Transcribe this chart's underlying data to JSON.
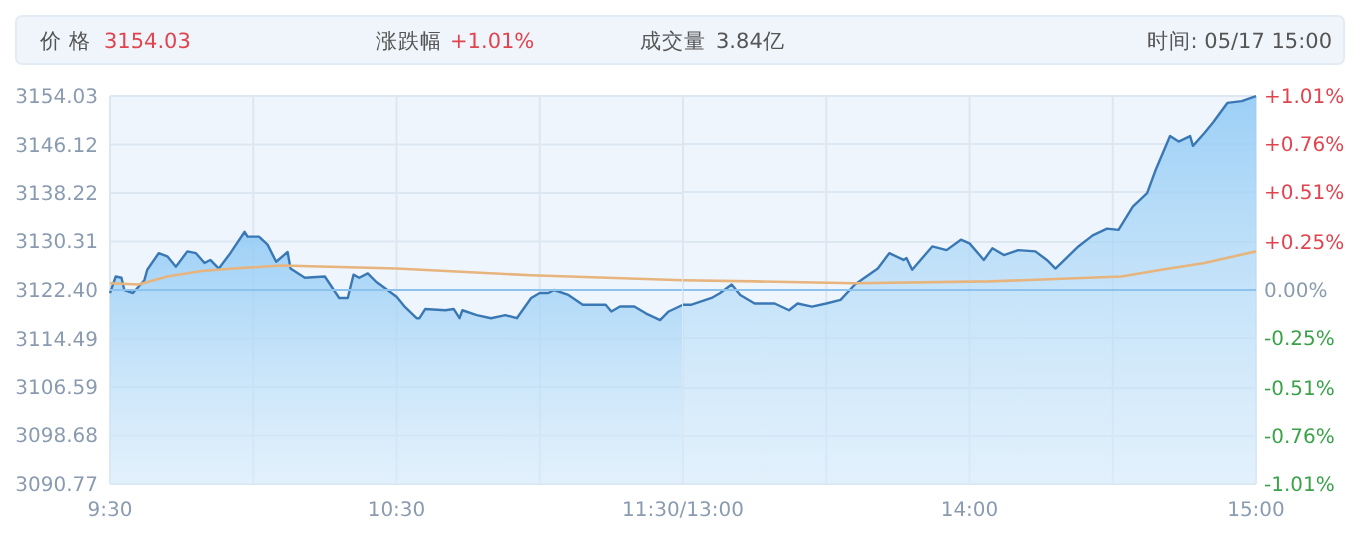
{
  "chart_data": [
    {
      "type": "area",
      "annotations": [
        "价 格",
        "3154.03",
        "涨跌幅",
        "+1.01%",
        "成交量",
        "3.84亿",
        "时间: 05/17 15:00"
      ],
      "xlim": [
        9.5,
        11.5
      ],
      "xticks": [
        {
          "value": 9.5,
          "label": "9:30"
        },
        {
          "value": 10,
          "label": null
        },
        {
          "value": 10.5,
          "label": "10:30"
        },
        {
          "value": 11,
          "label": null
        },
        {
          "value": 11.5,
          "label": "11:30/13:00"
        }
      ],
      "ylim": [
        3090.77,
        3154.03
      ],
      "yticks": [
        {
          "value": 3090.77,
          "label": "3090.77"
        },
        {
          "value": 3098.68,
          "label": "3098.68"
        },
        {
          "value": 3106.59,
          "label": "3106.59"
        },
        {
          "value": 3114.49,
          "label": "3114.49"
        },
        {
          "value": 3122.4,
          "label": "3122.40"
        },
        {
          "value": 3130.31,
          "label": "3130.31"
        },
        {
          "value": 3138.22,
          "label": "3138.22"
        },
        {
          "value": 3146.12,
          "label": "3146.12"
        },
        {
          "value": 3154.03,
          "label": "3154.03"
        }
      ],
      "grid": true,
      "ref_lines": [
        {
          "axis": "y",
          "value": 3122.4,
          "color": "#8cc2ec"
        }
      ],
      "series": [
        {
          "color": "#3a78b5",
          "x": [
            9.5,
            9.52,
            9.54,
            9.55,
            9.58,
            9.62,
            9.63,
            9.67,
            9.7,
            9.73,
            9.77,
            9.8,
            9.83,
            9.85,
            9.88,
            9.92,
            9.97,
            9.98,
            10.02,
            10.05,
            10.08,
            10.12,
            10.13,
            10.18,
            10.25,
            10.3,
            10.33,
            10.35,
            10.37,
            10.4,
            10.43,
            10.5,
            10.53,
            10.57,
            10.58,
            10.6,
            10.67,
            10.7,
            10.72,
            10.73,
            10.78,
            10.83,
            10.88,
            10.92,
            10.97,
            11,
            11.03,
            11.05,
            11.1,
            11.15,
            11.18,
            11.23,
            11.25,
            11.28,
            11.33,
            11.37,
            11.42,
            11.45,
            11.5
          ],
          "values": [
            3121.9,
            3124.6,
            3124.4,
            3122.4,
            3121.9,
            3124.0,
            3125.7,
            3128.4,
            3127.9,
            3126.2,
            3128.7,
            3128.4,
            3126.8,
            3127.3,
            3125.9,
            3128.4,
            3131.9,
            3131.1,
            3131.1,
            3129.8,
            3127.0,
            3128.6,
            3125.9,
            3124.4,
            3124.6,
            3121.1,
            3121.1,
            3124.9,
            3124.4,
            3125.1,
            3123.7,
            3121.3,
            3119.6,
            3117.8,
            3117.8,
            3119.3,
            3119.1,
            3119.3,
            3117.8,
            3119.1,
            3118.3,
            3117.8,
            3118.3,
            3117.8,
            3121.1,
            3121.9,
            3121.9,
            3122.4,
            3121.6,
            3120.0,
            3120.0,
            3120.0,
            3118.9,
            3119.7,
            3119.7,
            3118.6,
            3117.5,
            3118.9,
            3120.0
          ]
        },
        {
          "type": "line",
          "color": "#e6b47c",
          "x": [
            9.5,
            9.6,
            9.7,
            9.82,
            9.93,
            10.1,
            10.5,
            10.97,
            11.5
          ],
          "values": [
            3123.5,
            3123.3,
            3124.6,
            3125.5,
            3125.9,
            3126.4,
            3125.9,
            3124.8,
            3124.0
          ]
        }
      ]
    },
    {
      "type": "area",
      "xlim": [
        13,
        15
      ],
      "xticks": [
        {
          "value": 13,
          "label": null
        },
        {
          "value": 13.5,
          "label": null
        },
        {
          "value": 14,
          "label": "14:00"
        },
        {
          "value": 14.5,
          "label": null
        },
        {
          "value": 15,
          "label": "15:00"
        }
      ],
      "ylim": [
        3090.77,
        3154.03
      ],
      "tick_labels": "x",
      "y2lim": [
        -1.01,
        1.01
      ],
      "y2ticks": [
        {
          "value": -1.01,
          "label": "-1.01%"
        },
        {
          "value": -0.76,
          "label": "-0.76%"
        },
        {
          "value": -0.51,
          "label": "-0.51%"
        },
        {
          "value": -0.25,
          "label": "-0.25%"
        },
        {
          "value": 0,
          "label": "0.00%"
        },
        {
          "value": 0.25,
          "label": "+0.25%"
        },
        {
          "value": 0.51,
          "label": "+0.51%"
        },
        {
          "value": 0.76,
          "label": "+0.76%"
        },
        {
          "value": 1.01,
          "label": "+1.01%"
        }
      ],
      "grid": true,
      "ref_lines": [
        {
          "axis": "y",
          "value": 3122.4,
          "color": "#8cc2ec"
        }
      ],
      "series": [
        {
          "color": "#3a78b5",
          "x": [
            13,
            13.03,
            13.1,
            13.13,
            13.17,
            13.2,
            13.25,
            13.32,
            13.37,
            13.4,
            13.45,
            13.5,
            13.55,
            13.6,
            13.68,
            13.72,
            13.77,
            13.78,
            13.8,
            13.87,
            13.92,
            13.97,
            14,
            14.05,
            14.08,
            14.12,
            14.17,
            14.23,
            14.27,
            14.3,
            14.32,
            14.38,
            14.43,
            14.48,
            14.52,
            14.57,
            14.62,
            14.65,
            14.7,
            14.73,
            14.77,
            14.78,
            14.82,
            14.85,
            14.9,
            14.95,
            15
          ],
          "values": [
            3120.0,
            3120.0,
            3121.1,
            3121.9,
            3123.3,
            3121.6,
            3120.2,
            3120.2,
            3119.1,
            3120.2,
            3119.7,
            3120.2,
            3120.8,
            3123.3,
            3125.9,
            3128.4,
            3127.3,
            3127.6,
            3125.7,
            3129.5,
            3128.9,
            3130.6,
            3130.0,
            3127.3,
            3129.2,
            3128.1,
            3128.9,
            3128.7,
            3127.3,
            3125.9,
            3126.8,
            3129.5,
            3131.3,
            3132.4,
            3132.2,
            3136.0,
            3138.2,
            3142.0,
            3147.5,
            3146.6,
            3147.5,
            3145.9,
            3148.0,
            3149.7,
            3152.9,
            3153.2,
            3154.0
          ]
        },
        {
          "type": "line",
          "color": "#e6b47c",
          "x": [
            13,
            13.25,
            13.6,
            14.07,
            14.53,
            14.67,
            14.82,
            15
          ],
          "values": [
            3124.0,
            3123.8,
            3123.5,
            3123.8,
            3124.6,
            3125.7,
            3126.8,
            3128.7
          ]
        }
      ]
    }
  ]
}
